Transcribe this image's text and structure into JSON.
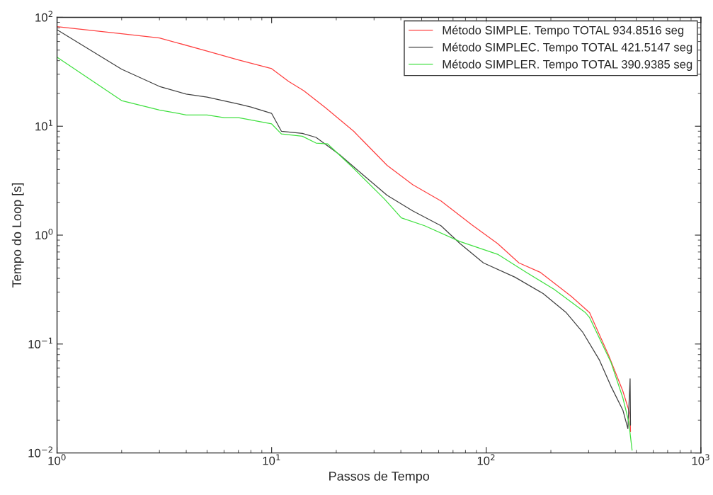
{
  "chart_data": {
    "type": "line",
    "xlabel": "Passos de Tempo",
    "ylabel": "Tempo do Loop [s]",
    "log": "xy",
    "grid": false,
    "legend": "top right",
    "line_style": "solid",
    "marker": "none",
    "xlim": [
      1,
      1000
    ],
    "xticks": [
      {
        "value": 1,
        "label": "10$^{0}$"
      },
      {
        "value": 10,
        "label": "10$^{1}$"
      },
      {
        "value": 100,
        "label": "10$^{2}$"
      },
      {
        "value": 1000,
        "label": "10$^{3}$"
      }
    ],
    "ylim": [
      0.01,
      100
    ],
    "yticks": [
      {
        "value": 0.01,
        "label": "10$^{−2}$"
      },
      {
        "value": 0.1,
        "label": "10$^{−1}$"
      },
      {
        "value": 1,
        "label": "10$^{0}$"
      },
      {
        "value": 10,
        "label": "10$^{1}$"
      },
      {
        "value": 100,
        "label": "10$^{2}$"
      }
    ],
    "series": [
      {
        "name": "Método SIMPLE. Tempo TOTAL 934.8516 seg",
        "color": "#ff4040",
        "x": [
          1,
          2,
          3,
          5,
          7,
          10,
          12,
          14.1,
          17.8,
          24.1,
          34.5,
          45.4,
          61.5,
          85.9,
          113,
          142,
          178,
          249,
          303,
          372,
          433,
          468,
          470
        ],
        "values": [
          82,
          70.7,
          64.7,
          49,
          40.6,
          33.8,
          25.8,
          21.2,
          14.8,
          9.0,
          4.37,
          2.91,
          2.06,
          1.24,
          0.835,
          0.556,
          0.457,
          0.274,
          0.194,
          0.0785,
          0.037,
          0.0225,
          0.0157
        ]
      },
      {
        "name": "Método SIMPLEC. Tempo TOTAL 421.5147 seg",
        "color": "#404040",
        "x": [
          1,
          2,
          3,
          4,
          5,
          7,
          8,
          10,
          11.1,
          13.9,
          16.1,
          20.7,
          24.1,
          34.5,
          45.4,
          61.5,
          75.5,
          97,
          136,
          184,
          236,
          281,
          337,
          381,
          433,
          457,
          468,
          470
        ],
        "values": [
          77,
          33.4,
          23.2,
          19.7,
          18.5,
          16,
          15,
          13.1,
          9.0,
          8.6,
          7.9,
          5.5,
          4.24,
          2.32,
          1.67,
          1.22,
          0.835,
          0.556,
          0.411,
          0.291,
          0.194,
          0.129,
          0.071,
          0.041,
          0.0247,
          0.0167,
          0.048,
          0.018
        ]
      },
      {
        "name": "Método SIMPLER. Tempo TOTAL 390.9385 seg",
        "color": "#40e040",
        "x": [
          1,
          2,
          3,
          4,
          5,
          6,
          7,
          10,
          11.1,
          13.9,
          16.1,
          18.2,
          24.1,
          33.5,
          40.2,
          51.6,
          75.5,
          113,
          153,
          207,
          290,
          303,
          381,
          433,
          461,
          478
        ],
        "values": [
          43,
          17.2,
          14.1,
          12.7,
          12.7,
          12.0,
          12.0,
          10.5,
          8.5,
          8.1,
          7.0,
          6.9,
          4.1,
          2.15,
          1.44,
          1.22,
          0.873,
          0.667,
          0.457,
          0.318,
          0.194,
          0.175,
          0.068,
          0.032,
          0.0194,
          0.0106
        ]
      }
    ]
  }
}
